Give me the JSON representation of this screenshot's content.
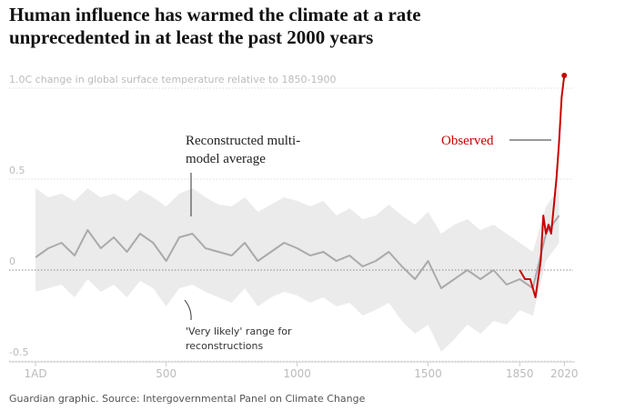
{
  "chart_data": {
    "type": "line",
    "title": "Human influence has warmed the climate at a rate unprecedented in at least the past 2000 years",
    "source": "Guardian graphic. Source: Intergovernmental Panel on Climate Change",
    "xlim": [
      -100,
      2040
    ],
    "ylim": [
      -0.505,
      1.1
    ],
    "xticks": [
      {
        "value": 1,
        "label": "1AD"
      },
      500,
      1000,
      1500,
      1850,
      2020
    ],
    "yticks": [
      {
        "value": -0.5,
        "label": "-0.5"
      },
      0,
      0.5,
      {
        "value": 1,
        "label": "1.0C change in global surface temperature relative to 1850-1900"
      }
    ],
    "grid": true,
    "range": {
      "name": "'Very likely' range for reconstructions",
      "color": "#ebebeb",
      "x": [
        1,
        50,
        100,
        150,
        200,
        250,
        300,
        350,
        400,
        450,
        500,
        550,
        600,
        650,
        700,
        750,
        800,
        850,
        900,
        950,
        1000,
        1050,
        1100,
        1150,
        1200,
        1250,
        1300,
        1350,
        1400,
        1450,
        1500,
        1550,
        1600,
        1650,
        1700,
        1750,
        1800,
        1850,
        1900,
        1950,
        2000
      ],
      "upper": [
        0.45,
        0.4,
        0.42,
        0.38,
        0.45,
        0.4,
        0.42,
        0.38,
        0.44,
        0.4,
        0.35,
        0.42,
        0.45,
        0.4,
        0.36,
        0.35,
        0.4,
        0.32,
        0.36,
        0.4,
        0.38,
        0.35,
        0.38,
        0.3,
        0.34,
        0.28,
        0.3,
        0.36,
        0.3,
        0.25,
        0.32,
        0.2,
        0.25,
        0.28,
        0.22,
        0.25,
        0.2,
        0.15,
        0.1,
        0.35,
        0.45
      ],
      "lower": [
        -0.12,
        -0.1,
        -0.08,
        -0.15,
        -0.05,
        -0.12,
        -0.08,
        -0.15,
        -0.06,
        -0.1,
        -0.2,
        -0.1,
        -0.08,
        -0.12,
        -0.15,
        -0.18,
        -0.1,
        -0.2,
        -0.15,
        -0.12,
        -0.14,
        -0.18,
        -0.15,
        -0.2,
        -0.18,
        -0.25,
        -0.22,
        -0.18,
        -0.28,
        -0.35,
        -0.3,
        -0.45,
        -0.38,
        -0.3,
        -0.35,
        -0.28,
        -0.3,
        -0.22,
        -0.25,
        0.05,
        0.15
      ]
    },
    "series": [
      {
        "name": "Reconstructed multi-model average",
        "color": "#aaaaaa",
        "x": [
          1,
          50,
          100,
          150,
          200,
          250,
          300,
          350,
          400,
          450,
          500,
          550,
          600,
          650,
          700,
          750,
          800,
          850,
          900,
          950,
          1000,
          1050,
          1100,
          1150,
          1200,
          1250,
          1300,
          1350,
          1400,
          1450,
          1500,
          1550,
          1600,
          1650,
          1700,
          1750,
          1800,
          1850,
          1900,
          1950,
          2000
        ],
        "values": [
          0.07,
          0.12,
          0.15,
          0.08,
          0.22,
          0.12,
          0.18,
          0.1,
          0.2,
          0.15,
          0.05,
          0.18,
          0.2,
          0.12,
          0.1,
          0.08,
          0.15,
          0.05,
          0.1,
          0.15,
          0.12,
          0.08,
          0.1,
          0.05,
          0.08,
          0.02,
          0.05,
          0.1,
          0.02,
          -0.05,
          0.05,
          -0.1,
          -0.05,
          0.0,
          -0.05,
          0.0,
          -0.08,
          -0.05,
          -0.1,
          0.2,
          0.3
        ]
      },
      {
        "name": "Observed",
        "color": "#c70000",
        "x": [
          1850,
          1870,
          1890,
          1910,
          1930,
          1940,
          1950,
          1960,
          1970,
          1980,
          1990,
          2000,
          2010,
          2020
        ],
        "values": [
          0.0,
          -0.05,
          -0.05,
          -0.15,
          0.05,
          0.3,
          0.2,
          0.25,
          0.2,
          0.35,
          0.5,
          0.7,
          0.95,
          1.07
        ]
      }
    ]
  }
}
